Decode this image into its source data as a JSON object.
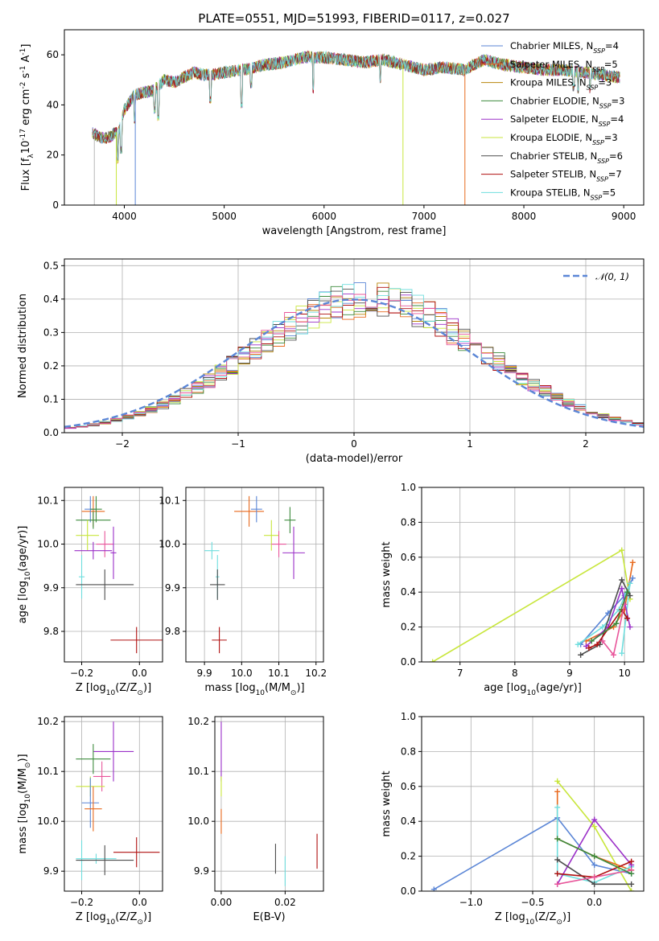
{
  "title": "PLATE=0551, MJD=51993, FIBERID=0117, z=0.027",
  "colors": {
    "chabrier_miles": "#5b86d6",
    "salpeter_miles": "#e86a1e",
    "kroupa_miles": "#b8860b",
    "chabrier_elodie": "#3d8b3d",
    "salpeter_elodie": "#9b30c8",
    "kroupa_elodie": "#c8e63c",
    "chabrier_stelib": "#4d4d4d",
    "salpeter_stelib": "#b01010",
    "kroupa_stelib": "#6fdede",
    "pink": "#e8559a",
    "gaussian": "#5b86d6"
  },
  "chart_data": [
    {
      "type": "line",
      "id": "spectrum",
      "xlabel": "wavelength [Angstrom, rest frame]",
      "ylabel": "Flux [f$_\\lambda$10$^{-17}$ erg cm$^{-2}$ s$^{-1}$ A$^{-1}$]",
      "xlim": [
        3400,
        9200
      ],
      "ylim": [
        0,
        70
      ],
      "xticks": [
        4000,
        5000,
        6000,
        7000,
        8000,
        9000
      ],
      "yticks": [
        0,
        20,
        40,
        60
      ],
      "grid": false,
      "legend_position": "top-right",
      "legend": [
        {
          "text": "Chabrier MILES, N",
          "sub": "SSP",
          "tail": "=4",
          "color": "#5b86d6"
        },
        {
          "text": "Salpeter MILES, N",
          "sub": "SSP",
          "tail": "=5",
          "color": "#e86a1e"
        },
        {
          "text": "Kroupa MILES, N",
          "sub": "SSP",
          "tail": "=3",
          "color": "#b8860b"
        },
        {
          "text": "Chabrier ELODIE, N",
          "sub": "SSP",
          "tail": "=3",
          "color": "#3d8b3d"
        },
        {
          "text": "Salpeter ELODIE, N",
          "sub": "SSP",
          "tail": "=4",
          "color": "#9b30c8"
        },
        {
          "text": "Kroupa ELODIE, N",
          "sub": "SSP",
          "tail": "=3",
          "color": "#c8e63c"
        },
        {
          "text": "Chabrier STELIB, N",
          "sub": "SSP",
          "tail": "=6",
          "color": "#4d4d4d"
        },
        {
          "text": "Salpeter STELIB, N",
          "sub": "SSP",
          "tail": "=7",
          "color": "#b01010"
        },
        {
          "text": "Kroupa STELIB, N",
          "sub": "SSP",
          "tail": "=5",
          "color": "#6fdede"
        }
      ],
      "spectrum_trend": {
        "x": [
          3680,
          3750,
          3850,
          3950,
          4000,
          4100,
          4200,
          4300,
          4400,
          4500,
          4600,
          4700,
          4800,
          4900,
          5000,
          5200,
          5400,
          5600,
          5800,
          6000,
          6200,
          6400,
          6600,
          6800,
          7000,
          7200,
          7400,
          7600,
          7800,
          8000,
          8200,
          8400,
          8600,
          8800,
          8960
        ],
        "y": [
          29,
          27,
          27,
          30,
          38,
          44,
          45,
          46,
          50,
          49,
          51,
          53,
          52,
          52,
          53,
          54,
          56,
          57,
          59,
          59,
          58,
          57,
          58,
          56,
          54,
          55,
          54,
          58,
          56,
          55,
          54,
          54,
          53,
          52,
          51
        ]
      },
      "absorption_dips": [
        {
          "x": 3934,
          "y": 18
        },
        {
          "x": 3968,
          "y": 22
        },
        {
          "x": 4102,
          "y": 34
        },
        {
          "x": 4304,
          "y": 38
        },
        {
          "x": 4340,
          "y": 35
        },
        {
          "x": 4861,
          "y": 42
        },
        {
          "x": 5175,
          "y": 40
        },
        {
          "x": 5270,
          "y": 48
        },
        {
          "x": 5890,
          "y": 46
        },
        {
          "x": 6563,
          "y": 50
        },
        {
          "x": 8498,
          "y": 47
        },
        {
          "x": 8542,
          "y": 46
        },
        {
          "x": 8662,
          "y": 46
        }
      ],
      "drops_to_zero": [
        {
          "x": 3700,
          "color": "#b8b8b8"
        },
        {
          "x": 3920,
          "color": "#c8e63c"
        },
        {
          "x": 4110,
          "color": "#5b86d6"
        },
        {
          "x": 6790,
          "color": "#c8e63c"
        },
        {
          "x": 7410,
          "color": "#e86a1e"
        }
      ]
    },
    {
      "type": "step",
      "id": "residual-distribution",
      "xlabel": "(data-model)/error",
      "ylabel": "Normed distribution",
      "xlim": [
        -2.5,
        2.5
      ],
      "ylim": [
        0,
        0.52
      ],
      "xticks": [
        -2,
        -1,
        0,
        1,
        2
      ],
      "yticks": [
        0.0,
        0.1,
        0.2,
        0.3,
        0.4,
        0.5
      ],
      "grid": true,
      "legend_position": "top-right",
      "legend": [
        {
          "text": "𝒩(0, 1)",
          "style": "dashed",
          "color": "#5b86d6"
        }
      ],
      "bin_width": 0.1,
      "series_colors": [
        "#5b86d6",
        "#e86a1e",
        "#b8860b",
        "#3d8b3d",
        "#9b30c8",
        "#c8e63c",
        "#4d4d4d",
        "#b01010",
        "#6fdede",
        "#e8559a"
      ]
    },
    {
      "type": "scatter",
      "id": "age-vs-z",
      "xlabel": "Z [log$_{10}$(Z/Z$_\\odot$)]",
      "ylabel": "age  [log$_{10}$(age/yr)]",
      "xlim": [
        -0.26,
        0.08
      ],
      "ylim": [
        9.73,
        10.13
      ],
      "xticks": [
        -0.2,
        0.0
      ],
      "yticks": [
        9.8,
        9.9,
        10.0,
        10.1
      ],
      "grid": true,
      "points": [
        {
          "x": -0.16,
          "y": 10.075,
          "xerr": 0.04,
          "yerr": 0.035,
          "color": "#e86a1e"
        },
        {
          "x": -0.17,
          "y": 10.08,
          "xerr": 0.02,
          "yerr": 0.03,
          "color": "#5b86d6"
        },
        {
          "x": -0.15,
          "y": 10.08,
          "xerr": 0.02,
          "yerr": 0.03,
          "color": "#3d8b3d"
        },
        {
          "x": -0.16,
          "y": 10.055,
          "xerr": 0.06,
          "yerr": 0.02,
          "color": "#3d8b3d"
        },
        {
          "x": -0.18,
          "y": 10.02,
          "xerr": 0.04,
          "yerr": 0.035,
          "color": "#c8e63c"
        },
        {
          "x": -0.12,
          "y": 10.0,
          "xerr": 0.03,
          "yerr": 0.03,
          "color": "#e8559a"
        },
        {
          "x": -0.16,
          "y": 9.985,
          "xerr": 0.065,
          "yerr": 0.02,
          "color": "#9b30c8"
        },
        {
          "x": -0.09,
          "y": 9.98,
          "xerr": 0.01,
          "yerr": 0.06,
          "color": "#9b30c8"
        },
        {
          "x": -0.2,
          "y": 9.925,
          "xerr": 0.01,
          "yerr": 0.05,
          "color": "#6fdede"
        },
        {
          "x": -0.12,
          "y": 9.907,
          "xerr": 0.1,
          "yerr": 0.035,
          "color": "#4d4d4d"
        },
        {
          "x": -0.01,
          "y": 9.78,
          "xerr": 0.09,
          "yerr": 0.03,
          "color": "#b01010"
        }
      ]
    },
    {
      "type": "scatter",
      "id": "age-vs-mass",
      "xlabel": "mass [log$_{10}$(M/M$_\\odot$)]",
      "ylabel": "",
      "xlim": [
        9.85,
        10.22
      ],
      "ylim": [
        9.73,
        10.13
      ],
      "xticks": [
        9.9,
        10.0,
        10.1,
        10.2
      ],
      "yticks": [
        9.8,
        9.9,
        10.0,
        10.1
      ],
      "grid": true,
      "points": [
        {
          "x": 10.02,
          "y": 10.075,
          "xerr": 0.04,
          "yerr": 0.035,
          "color": "#e86a1e"
        },
        {
          "x": 10.04,
          "y": 10.08,
          "xerr": 0.015,
          "yerr": 0.03,
          "color": "#5b86d6"
        },
        {
          "x": 10.13,
          "y": 10.055,
          "xerr": 0.015,
          "yerr": 0.03,
          "color": "#3d8b3d"
        },
        {
          "x": 10.08,
          "y": 10.02,
          "xerr": 0.02,
          "yerr": 0.035,
          "color": "#c8e63c"
        },
        {
          "x": 10.1,
          "y": 10.0,
          "xerr": 0.02,
          "yerr": 0.03,
          "color": "#e8559a"
        },
        {
          "x": 10.14,
          "y": 9.98,
          "xerr": 0.03,
          "yerr": 0.06,
          "color": "#9b30c8"
        },
        {
          "x": 9.92,
          "y": 9.985,
          "xerr": 0.02,
          "yerr": 0.02,
          "color": "#6fdede"
        },
        {
          "x": 9.935,
          "y": 9.925,
          "xerr": 0.005,
          "yerr": 0.05,
          "color": "#6fdede"
        },
        {
          "x": 9.935,
          "y": 9.907,
          "xerr": 0.02,
          "yerr": 0.035,
          "color": "#4d4d4d"
        },
        {
          "x": 9.94,
          "y": 9.78,
          "xerr": 0.02,
          "yerr": 0.03,
          "color": "#b01010"
        }
      ]
    },
    {
      "type": "line",
      "id": "mass-weight-vs-age",
      "xlabel": "age  [log$_{10}$(age/yr)]",
      "ylabel": "mass weight",
      "xlim": [
        6.3,
        10.35
      ],
      "ylim": [
        0,
        1.0
      ],
      "xticks": [
        7,
        8,
        9,
        10
      ],
      "yticks": [
        0.0,
        0.2,
        0.4,
        0.6,
        0.8,
        1.0
      ],
      "grid": true,
      "series": [
        {
          "color": "#c8e63c",
          "points": [
            [
              6.5,
              0.0
            ],
            [
              9.95,
              0.64
            ],
            [
              10.1,
              0.36
            ]
          ]
        },
        {
          "color": "#e86a1e",
          "points": [
            [
              9.3,
              0.12
            ],
            [
              9.8,
              0.2
            ],
            [
              10.0,
              0.3
            ],
            [
              10.15,
              0.57
            ]
          ]
        },
        {
          "color": "#5b86d6",
          "points": [
            [
              9.2,
              0.1
            ],
            [
              9.7,
              0.28
            ],
            [
              10.0,
              0.38
            ],
            [
              10.15,
              0.48
            ]
          ]
        },
        {
          "color": "#6fdede",
          "points": [
            [
              9.15,
              0.1
            ],
            [
              9.6,
              0.2
            ],
            [
              9.9,
              0.3
            ],
            [
              10.1,
              0.45
            ],
            [
              9.95,
              0.05
            ]
          ]
        },
        {
          "color": "#9b30c8",
          "points": [
            [
              9.3,
              0.09
            ],
            [
              9.7,
              0.2
            ],
            [
              9.95,
              0.42
            ],
            [
              10.1,
              0.2
            ]
          ]
        },
        {
          "color": "#4d4d4d",
          "points": [
            [
              9.2,
              0.04
            ],
            [
              9.55,
              0.1
            ],
            [
              9.95,
              0.47
            ],
            [
              10.1,
              0.38
            ]
          ]
        },
        {
          "color": "#b01010",
          "points": [
            [
              9.35,
              0.08
            ],
            [
              9.5,
              0.1
            ],
            [
              9.95,
              0.3
            ],
            [
              10.05,
              0.25
            ]
          ]
        },
        {
          "color": "#e8559a",
          "points": [
            [
              9.6,
              0.12
            ],
            [
              9.8,
              0.04
            ],
            [
              10.0,
              0.33
            ]
          ]
        },
        {
          "color": "#3d8b3d",
          "points": [
            [
              9.4,
              0.12
            ],
            [
              9.85,
              0.22
            ],
            [
              10.05,
              0.4
            ]
          ]
        }
      ]
    },
    {
      "type": "scatter",
      "id": "mass-vs-z",
      "xlabel": "Z [log$_{10}$(Z/Z$_\\odot$)]",
      "ylabel": "mass [log$_{10}$(M/M$_\\odot$)]",
      "xlim": [
        -0.26,
        0.08
      ],
      "ylim": [
        9.86,
        10.21
      ],
      "xticks": [
        -0.2,
        0.0
      ],
      "yticks": [
        9.9,
        10.0,
        10.1,
        10.2
      ],
      "grid": true,
      "points": [
        {
          "x": -0.09,
          "y": 10.14,
          "xerr": 0.07,
          "yerr": 0.06,
          "color": "#9b30c8"
        },
        {
          "x": -0.16,
          "y": 10.125,
          "xerr": 0.06,
          "yerr": 0.03,
          "color": "#3d8b3d"
        },
        {
          "x": -0.13,
          "y": 10.09,
          "xerr": 0.03,
          "yerr": 0.03,
          "color": "#e8559a"
        },
        {
          "x": -0.17,
          "y": 10.07,
          "xerr": 0.05,
          "yerr": 0.02,
          "color": "#c8e63c"
        },
        {
          "x": -0.17,
          "y": 10.037,
          "xerr": 0.03,
          "yerr": 0.05,
          "color": "#5b86d6"
        },
        {
          "x": -0.16,
          "y": 10.025,
          "xerr": 0.03,
          "yerr": 0.045,
          "color": "#e86a1e"
        },
        {
          "x": -0.01,
          "y": 9.938,
          "xerr": 0.08,
          "yerr": 0.03,
          "color": "#b01010"
        },
        {
          "x": -0.15,
          "y": 9.925,
          "xerr": 0.07,
          "yerr": 0.01,
          "color": "#6fdede"
        },
        {
          "x": -0.2,
          "y": 9.922,
          "xerr": 0.01,
          "yerr": 0.04,
          "color": "#6fdede"
        },
        {
          "x": -0.12,
          "y": 9.922,
          "xerr": 0.1,
          "yerr": 0.03,
          "color": "#4d4d4d"
        }
      ]
    },
    {
      "type": "scatter",
      "id": "mass-vs-ebv",
      "xlabel": "E(B-V)",
      "ylabel": "",
      "xlim": [
        -0.002,
        0.032
      ],
      "ylim": [
        9.86,
        10.21
      ],
      "xticks": [
        0.0,
        0.02
      ],
      "yticks": [
        9.9,
        10.0,
        10.1,
        10.2
      ],
      "grid": true,
      "points": [
        {
          "x": 0.0,
          "y": 10.14,
          "xerr": 0,
          "yerr": 0.06,
          "color": "#9b30c8"
        },
        {
          "x": 0.0,
          "y": 10.07,
          "xerr": 0,
          "yerr": 0.02,
          "color": "#c8e63c"
        },
        {
          "x": 0.0,
          "y": 10.0,
          "xerr": 0,
          "yerr": 0.025,
          "color": "#e86a1e"
        },
        {
          "x": 0.017,
          "y": 9.925,
          "xerr": 0,
          "yerr": 0.03,
          "color": "#4d4d4d"
        },
        {
          "x": 0.02,
          "y": 9.9,
          "xerr": 0,
          "yerr": 0.03,
          "color": "#6fdede"
        },
        {
          "x": 0.03,
          "y": 9.94,
          "xerr": 0,
          "yerr": 0.035,
          "color": "#b01010"
        }
      ]
    },
    {
      "type": "line",
      "id": "mass-weight-vs-z",
      "xlabel": "Z [log$_{10}$(Z/Z$_\\odot$)]",
      "ylabel": "mass weight",
      "xlim": [
        -1.4,
        0.4
      ],
      "ylim": [
        0,
        1.0
      ],
      "xticks": [
        -1.0,
        -0.5,
        0.0
      ],
      "yticks": [
        0.0,
        0.2,
        0.4,
        0.6,
        0.8,
        1.0
      ],
      "grid": true,
      "series": [
        {
          "color": "#5b86d6",
          "points": [
            [
              -1.3,
              0.01
            ],
            [
              -0.3,
              0.42
            ],
            [
              0.0,
              0.15
            ],
            [
              0.3,
              0.1
            ]
          ]
        },
        {
          "color": "#c8e63c",
          "points": [
            [
              -0.3,
              0.63
            ],
            [
              0.0,
              0.37
            ],
            [
              0.3,
              0.0
            ]
          ]
        },
        {
          "color": "#e86a1e",
          "points": [
            [
              -0.3,
              0.57
            ],
            [
              -0.3,
              0.3
            ],
            [
              0.0,
              0.2
            ],
            [
              0.3,
              0.12
            ]
          ]
        },
        {
          "color": "#6fdede",
          "points": [
            [
              -0.3,
              0.48
            ],
            [
              -0.3,
              0.1
            ],
            [
              0.0,
              0.05
            ],
            [
              0.3,
              0.14
            ]
          ]
        },
        {
          "color": "#9b30c8",
          "points": [
            [
              -0.3,
              0.04
            ],
            [
              0.0,
              0.41
            ],
            [
              0.3,
              0.15
            ]
          ]
        },
        {
          "color": "#4d4d4d",
          "points": [
            [
              -0.3,
              0.18
            ],
            [
              0.0,
              0.04
            ],
            [
              0.3,
              0.04
            ]
          ]
        },
        {
          "color": "#b01010",
          "points": [
            [
              -0.3,
              0.1
            ],
            [
              0.0,
              0.08
            ],
            [
              0.3,
              0.17
            ]
          ]
        },
        {
          "color": "#e8559a",
          "points": [
            [
              -0.3,
              0.04
            ],
            [
              0.0,
              0.08
            ],
            [
              0.3,
              0.12
            ]
          ]
        },
        {
          "color": "#3d8b3d",
          "points": [
            [
              -0.3,
              0.3
            ],
            [
              0.0,
              0.2
            ],
            [
              0.3,
              0.1
            ]
          ]
        }
      ]
    }
  ]
}
